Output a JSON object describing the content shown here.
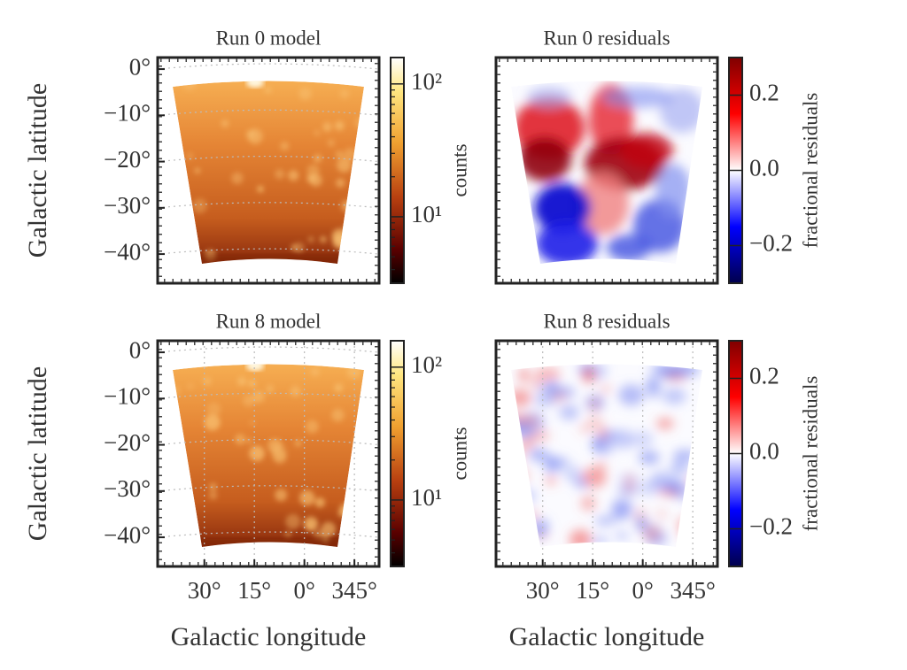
{
  "chart_data": [
    {
      "type": "heatmap",
      "map": "model",
      "title": "Run 0 model",
      "ylabel": "Galactic latitude",
      "ylim": [
        -46.3,
        2.5
      ],
      "yticks": [
        {
          "value": 0,
          "label": "0°"
        },
        {
          "value": -10,
          "label": "−10°"
        },
        {
          "value": -20,
          "label": "−20°"
        },
        {
          "value": -30,
          "label": "−30°"
        },
        {
          "value": -40,
          "label": "−40°"
        }
      ],
      "colorbar": {
        "label": "counts",
        "scale": "log",
        "lim": [
          3.16,
          158
        ],
        "ticks": [
          {
            "value": 10,
            "label": "10¹"
          },
          {
            "value": 100,
            "label": "10²"
          }
        ]
      }
    },
    {
      "type": "heatmap",
      "map": "residual-large",
      "title": "Run 0 residuals",
      "colorbar": {
        "label": "fractional residuals",
        "scale": "linear",
        "lim": [
          -0.3,
          0.3
        ],
        "ticks": [
          {
            "value": 0.2,
            "label": "0.2"
          },
          {
            "value": 0,
            "label": "0.0"
          },
          {
            "value": -0.2,
            "label": "−0.2"
          }
        ]
      }
    },
    {
      "type": "heatmap",
      "map": "model",
      "title": "Run 8 model",
      "ylabel": "Galactic latitude",
      "xlabel": "Galactic longitude",
      "ylim": [
        -46.3,
        2.5
      ],
      "xlim": [
        44,
        -22.4
      ],
      "yticks": [
        {
          "value": 0,
          "label": "0°"
        },
        {
          "value": -10,
          "label": "−10°"
        },
        {
          "value": -20,
          "label": "−20°"
        },
        {
          "value": -30,
          "label": "−30°"
        },
        {
          "value": -40,
          "label": "−40°"
        }
      ],
      "xticks": [
        {
          "value": 30,
          "label": "30°"
        },
        {
          "value": 15,
          "label": "15°"
        },
        {
          "value": 0,
          "label": "0°"
        },
        {
          "value": 345,
          "label": "345°"
        }
      ],
      "colorbar": {
        "label": "counts",
        "scale": "log",
        "lim": [
          3.16,
          158
        ],
        "ticks": [
          {
            "value": 10,
            "label": "10¹"
          },
          {
            "value": 100,
            "label": "10²"
          }
        ]
      }
    },
    {
      "type": "heatmap",
      "map": "residual-small",
      "title": "Run 8 residuals",
      "xlabel": "Galactic longitude",
      "xlim": [
        44,
        -22.4
      ],
      "xticks": [
        {
          "value": 30,
          "label": "30°"
        },
        {
          "value": 15,
          "label": "15°"
        },
        {
          "value": 0,
          "label": "0°"
        },
        {
          "value": 345,
          "label": "345°"
        }
      ],
      "colorbar": {
        "label": "fractional residuals",
        "scale": "linear",
        "lim": [
          -0.3,
          0.3
        ],
        "ticks": [
          {
            "value": 0.2,
            "label": "0.2"
          },
          {
            "value": 0,
            "label": "0.0"
          },
          {
            "value": -0.2,
            "label": "−0.2"
          }
        ]
      }
    }
  ]
}
